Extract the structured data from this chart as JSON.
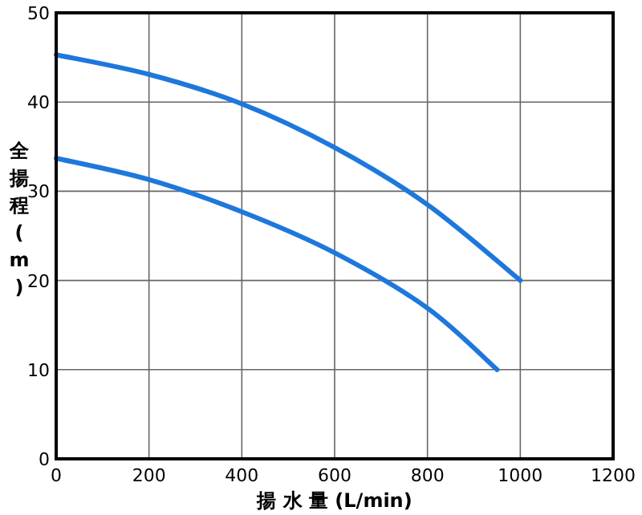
{
  "chart_data": {
    "type": "line",
    "xlabel": "揚 水 量 (L/min)",
    "ylabel": "全揚程(m)",
    "series": [
      {
        "color": "#1e78dc",
        "x": [
          0,
          200,
          400,
          600,
          800,
          1000
        ],
        "values": [
          45.3,
          43.1,
          39.8,
          34.9,
          28.5,
          20
        ]
      },
      {
        "color": "#1e78dc",
        "x": [
          0,
          200,
          400,
          600,
          800,
          950
        ],
        "values": [
          33.7,
          31.3,
          27.7,
          23.1,
          16.9,
          10
        ]
      }
    ],
    "xlim": [
      0,
      1200
    ],
    "xticks": [
      0,
      200,
      400,
      600,
      800,
      1000,
      1200
    ],
    "ylim": [
      0,
      50
    ],
    "yticks": [
      0,
      10,
      20,
      30,
      40,
      50
    ],
    "grid": true
  }
}
